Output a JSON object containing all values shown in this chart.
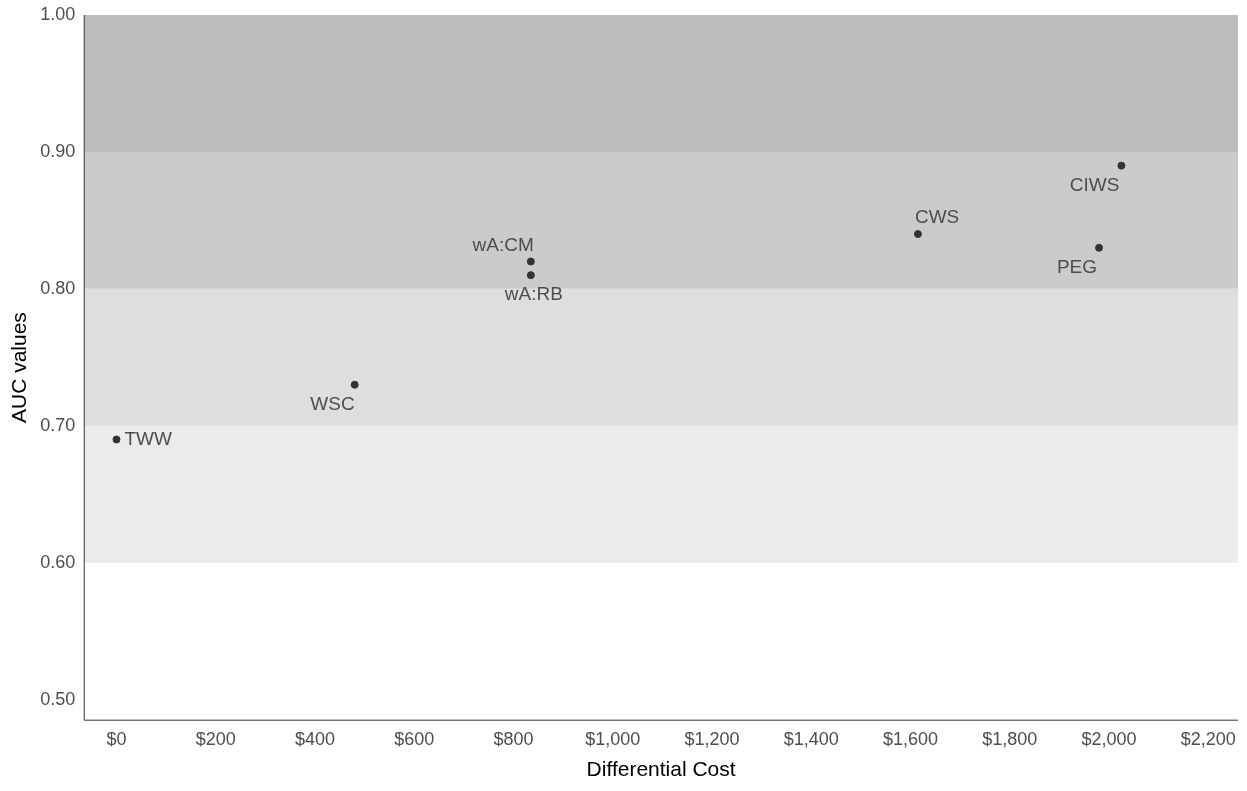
{
  "chart_data": {
    "type": "scatter",
    "xlabel": "Differential Cost",
    "ylabel": "AUC values",
    "series": [
      {
        "color": "#333333",
        "x": [
          0,
          480,
          835,
          835,
          1615,
          1980,
          2025
        ],
        "values": [
          0.69,
          0.73,
          0.82,
          0.81,
          0.84,
          0.83,
          0.89
        ]
      }
    ],
    "annotations": [
      {
        "text": "TWW",
        "x": 0,
        "y": 0.69
      },
      {
        "text": "WSC",
        "x": 480,
        "y": 0.73
      },
      {
        "text": "wA:CM",
        "x": 835,
        "y": 0.82
      },
      {
        "text": "wA:RB",
        "x": 835,
        "y": 0.81
      },
      {
        "text": "CWS",
        "x": 1615,
        "y": 0.84
      },
      {
        "text": "PEG",
        "x": 1980,
        "y": 0.83
      },
      {
        "text": "CIWS",
        "x": 2025,
        "y": 0.89
      }
    ],
    "bands": [
      {
        "axis": "y",
        "from": 0.6,
        "to": 0.7,
        "color": "#ebebeb"
      },
      {
        "axis": "y",
        "from": 0.7,
        "to": 0.8,
        "color": "#dedede"
      },
      {
        "axis": "y",
        "from": 0.8,
        "to": 0.9,
        "color": "#cbcbcb"
      },
      {
        "axis": "y",
        "from": 0.9,
        "to": 1.0,
        "color": "#bcbcbc"
      }
    ],
    "xlim": [
      -65,
      2260
    ],
    "ylim": [
      0.485,
      1.0
    ],
    "xticks": [
      {
        "value": 0,
        "label": "$0"
      },
      {
        "value": 200,
        "label": "$200"
      },
      {
        "value": 400,
        "label": "$400"
      },
      {
        "value": 600,
        "label": "$600"
      },
      {
        "value": 800,
        "label": "$800"
      },
      {
        "value": 1000,
        "label": "$1,000"
      },
      {
        "value": 1200,
        "label": "$1,200"
      },
      {
        "value": 1400,
        "label": "$1,400"
      },
      {
        "value": 1600,
        "label": "$1,600"
      },
      {
        "value": 1800,
        "label": "$1,800"
      },
      {
        "value": 2000,
        "label": "$2,000"
      },
      {
        "value": 2200,
        "label": "$2,200"
      }
    ],
    "yticks": [
      {
        "value": 0.5,
        "label": "0.50"
      },
      {
        "value": 0.6,
        "label": "0.60"
      },
      {
        "value": 0.7,
        "label": "0.70"
      },
      {
        "value": 0.8,
        "label": "0.80"
      },
      {
        "value": 0.9,
        "label": "0.90"
      },
      {
        "value": 1.0,
        "label": "1.00"
      }
    ],
    "grid": false,
    "legend": false,
    "marker": "circle"
  }
}
